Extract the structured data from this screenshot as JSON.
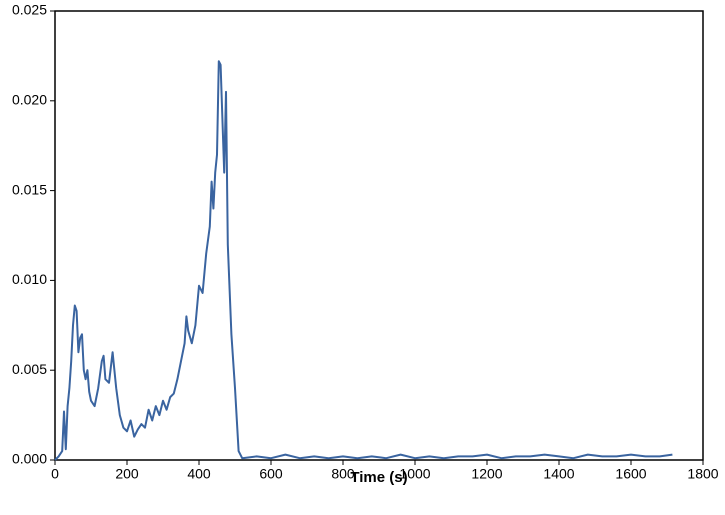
{
  "chart_data": {
    "type": "line",
    "x_label": "Time (s)",
    "x": [
      0,
      10,
      20,
      25,
      30,
      35,
      40,
      45,
      50,
      55,
      60,
      65,
      70,
      75,
      80,
      85,
      90,
      95,
      100,
      110,
      120,
      130,
      135,
      140,
      150,
      160,
      165,
      170,
      180,
      190,
      200,
      210,
      220,
      230,
      240,
      250,
      260,
      270,
      280,
      290,
      300,
      310,
      320,
      330,
      340,
      350,
      360,
      365,
      370,
      380,
      390,
      400,
      410,
      420,
      430,
      435,
      440,
      445,
      450,
      455,
      460,
      465,
      470,
      475,
      480,
      490,
      500,
      510,
      520,
      560,
      600,
      640,
      680,
      720,
      760,
      800,
      840,
      880,
      920,
      960,
      1000,
      1040,
      1080,
      1120,
      1160,
      1200,
      1240,
      1280,
      1320,
      1360,
      1400,
      1440,
      1480,
      1520,
      1560,
      1600,
      1640,
      1680,
      1715
    ],
    "series": [
      {
        "color": "#3a64a0",
        "values": [
          0,
          0.0002,
          0.0005,
          0.0027,
          0.0006,
          0.003,
          0.004,
          0.0055,
          0.0075,
          0.0086,
          0.0083,
          0.006,
          0.0068,
          0.007,
          0.005,
          0.0045,
          0.005,
          0.0038,
          0.0033,
          0.003,
          0.004,
          0.0055,
          0.0058,
          0.0045,
          0.0043,
          0.006,
          0.005,
          0.004,
          0.0025,
          0.0018,
          0.0016,
          0.0022,
          0.0013,
          0.0017,
          0.002,
          0.0018,
          0.0028,
          0.0022,
          0.003,
          0.0025,
          0.0033,
          0.0028,
          0.0035,
          0.0037,
          0.0045,
          0.0055,
          0.0065,
          0.008,
          0.0072,
          0.0065,
          0.0075,
          0.0097,
          0.0093,
          0.0115,
          0.013,
          0.0155,
          0.014,
          0.016,
          0.017,
          0.0222,
          0.022,
          0.019,
          0.016,
          0.0205,
          0.012,
          0.007,
          0.004,
          0.0005,
          0.0001,
          0.0002,
          0.0001,
          0.0003,
          0.0001,
          0.0002,
          0.0001,
          0.0002,
          0.0001,
          0.0002,
          0.0001,
          0.0003,
          0.0001,
          0.0002,
          0.0001,
          0.0002,
          0.0002,
          0.0003,
          0.0001,
          0.0002,
          0.0002,
          0.0003,
          0.0002,
          0.0001,
          0.0003,
          0.0002,
          0.0002,
          0.0003,
          0.0002,
          0.0002,
          0.0003
        ]
      }
    ],
    "xlim": [
      0,
      1800
    ],
    "xticks": [
      0,
      200,
      400,
      600,
      800,
      1000,
      1200,
      1400,
      1600,
      1800
    ],
    "ylim": [
      0,
      0.025
    ],
    "yticks": [
      {
        "value": 0,
        "label": "0.000"
      },
      {
        "value": 0.005,
        "label": "0.005"
      },
      {
        "value": 0.01,
        "label": "0.010"
      },
      {
        "value": 0.015,
        "label": "0.015"
      },
      {
        "value": 0.02,
        "label": "0.020"
      },
      {
        "value": 0.025,
        "label": "0.025"
      }
    ]
  }
}
